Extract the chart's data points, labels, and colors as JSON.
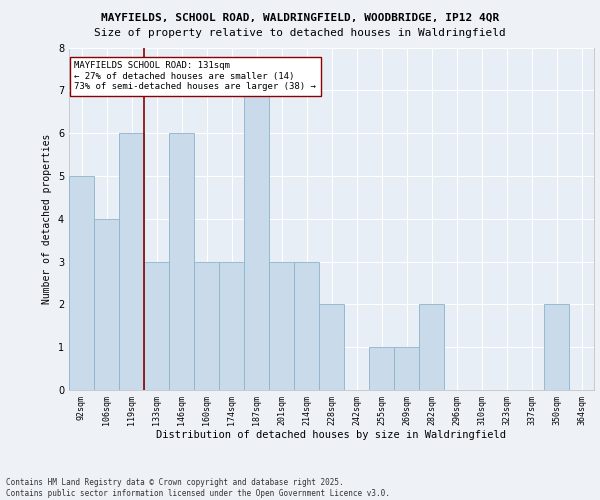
{
  "title1": "MAYFIELDS, SCHOOL ROAD, WALDRINGFIELD, WOODBRIDGE, IP12 4QR",
  "title2": "Size of property relative to detached houses in Waldringfield",
  "xlabel": "Distribution of detached houses by size in Waldringfield",
  "ylabel": "Number of detached properties",
  "categories": [
    "92sqm",
    "106sqm",
    "119sqm",
    "133sqm",
    "146sqm",
    "160sqm",
    "174sqm",
    "187sqm",
    "201sqm",
    "214sqm",
    "228sqm",
    "242sqm",
    "255sqm",
    "269sqm",
    "282sqm",
    "296sqm",
    "310sqm",
    "323sqm",
    "337sqm",
    "350sqm",
    "364sqm"
  ],
  "values": [
    5,
    4,
    6,
    3,
    6,
    3,
    3,
    7,
    3,
    3,
    2,
    0,
    1,
    1,
    2,
    0,
    0,
    0,
    0,
    2,
    0
  ],
  "bar_color": "#c9daea",
  "bar_edge_color": "#8ab4cc",
  "marker_color": "#8b0000",
  "annotation_lines": [
    "MAYFIELDS SCHOOL ROAD: 131sqm",
    "← 27% of detached houses are smaller (14)",
    "73% of semi-detached houses are larger (38) →"
  ],
  "ylim": [
    0,
    8
  ],
  "yticks": [
    0,
    1,
    2,
    3,
    4,
    5,
    6,
    7,
    8
  ],
  "footer": "Contains HM Land Registry data © Crown copyright and database right 2025.\nContains public sector information licensed under the Open Government Licence v3.0.",
  "background_color": "#eef2f7",
  "plot_bg_color": "#e8eef5",
  "grid_color": "#ffffff",
  "title1_fontsize": 8.0,
  "title2_fontsize": 8.0,
  "xlabel_fontsize": 7.5,
  "ylabel_fontsize": 7.0,
  "tick_fontsize": 6.0,
  "annot_fontsize": 6.5,
  "footer_fontsize": 5.5
}
